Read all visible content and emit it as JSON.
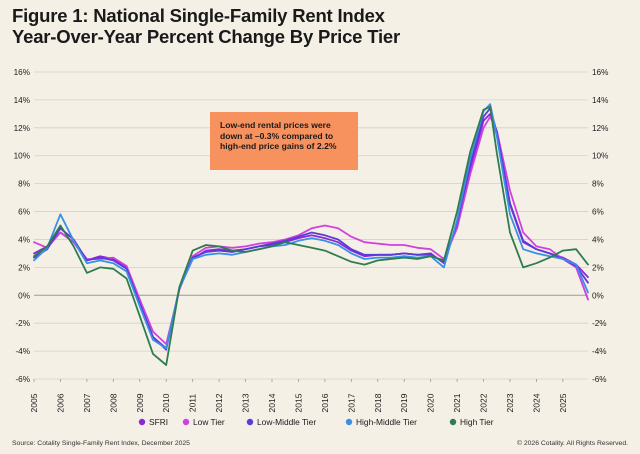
{
  "title_line1": "Figure 1: National Single-Family Rent Index",
  "title_line2": "Year-Over-Year Percent Change By Price Tier",
  "annotation": "Low-end rental prices were down at –0.3% compared to high-end price gains of 2.2%",
  "footer": {
    "source": "Source: Cotality Single-Family Rent Index, December 2025",
    "copyright": "© 2026 Cotality. All Rights Reserved."
  },
  "chart_data": {
    "type": "line",
    "ylim": [
      -6,
      16
    ],
    "xlim": [
      2005,
      2025.95
    ],
    "y_ticks": [
      -6,
      -4,
      -2,
      0,
      2,
      4,
      6,
      8,
      10,
      12,
      14,
      16
    ],
    "y_tick_labels": [
      "-6%",
      "-4%",
      "-2%",
      "0%",
      "2%",
      "4%",
      "6%",
      "8%",
      "10%",
      "12%",
      "14%",
      "16%"
    ],
    "x_ticks": [
      2005,
      2006,
      2007,
      2008,
      2009,
      2010,
      2011,
      2012,
      2013,
      2014,
      2015,
      2016,
      2017,
      2018,
      2019,
      2020,
      2021,
      2022,
      2023,
      2024,
      2025
    ],
    "x_tick_labels": [
      "2005",
      "2006",
      "2007",
      "2008",
      "2009",
      "2010",
      "2011",
      "2012",
      "2013",
      "2014",
      "2015",
      "2016",
      "2017",
      "2018",
      "2019",
      "2020",
      "2021",
      "2022",
      "2023",
      "2024",
      "2025"
    ],
    "grid": "horizontal",
    "legend_position": "bottom",
    "series": [
      {
        "name": "SFRI",
        "color": "#8a2ad6",
        "x": [
          2005,
          2005.5,
          2006,
          2006.5,
          2007,
          2007.5,
          2008,
          2008.5,
          2009,
          2009.5,
          2010,
          2010.5,
          2011,
          2011.5,
          2012,
          2012.5,
          2013,
          2013.5,
          2014,
          2014.5,
          2015,
          2015.5,
          2016,
          2016.5,
          2017,
          2017.5,
          2018,
          2018.5,
          2019,
          2019.5,
          2020,
          2020.5,
          2021,
          2021.5,
          2022,
          2022.25,
          2022.5,
          2023,
          2023.5,
          2024,
          2024.5,
          2025,
          2025.5,
          2025.95
        ],
        "y": [
          3.0,
          3.5,
          4.5,
          3.8,
          2.5,
          2.8,
          2.6,
          2.0,
          -0.5,
          -3.0,
          -3.8,
          0.5,
          2.6,
          3.2,
          3.3,
          3.2,
          3.3,
          3.5,
          3.6,
          3.8,
          4.1,
          4.3,
          4.1,
          3.8,
          3.2,
          2.8,
          2.9,
          2.9,
          3.0,
          2.9,
          2.9,
          2.4,
          5.0,
          9.0,
          12.5,
          13.0,
          11.5,
          6.5,
          3.8,
          3.3,
          3.0,
          2.7,
          2.2,
          1.3
        ]
      },
      {
        "name": "Low Tier",
        "color": "#d040e0",
        "x": [
          2005,
          2005.5,
          2006,
          2006.5,
          2007,
          2007.5,
          2008,
          2008.5,
          2009,
          2009.5,
          2010,
          2010.5,
          2011,
          2011.5,
          2012,
          2012.5,
          2013,
          2013.5,
          2014,
          2014.5,
          2015,
          2015.5,
          2016,
          2016.5,
          2017,
          2017.5,
          2018,
          2018.5,
          2019,
          2019.5,
          2020,
          2020.5,
          2021,
          2021.5,
          2022,
          2022.25,
          2022.5,
          2023,
          2023.5,
          2024,
          2024.5,
          2025,
          2025.5,
          2025.95
        ],
        "y": [
          3.8,
          3.4,
          4.5,
          3.8,
          2.6,
          2.6,
          2.7,
          2.1,
          -0.3,
          -2.6,
          -3.5,
          0.4,
          2.8,
          3.4,
          3.5,
          3.4,
          3.5,
          3.7,
          3.8,
          4.0,
          4.3,
          4.8,
          5.0,
          4.8,
          4.2,
          3.8,
          3.7,
          3.6,
          3.6,
          3.4,
          3.3,
          2.6,
          4.8,
          8.7,
          12.0,
          12.8,
          11.8,
          7.5,
          4.5,
          3.5,
          3.3,
          2.6,
          2.0,
          -0.3
        ]
      },
      {
        "name": "Low-Middle Tier",
        "color": "#5a3ad8",
        "x": [
          2005,
          2005.5,
          2006,
          2006.5,
          2007,
          2007.5,
          2008,
          2008.5,
          2009,
          2009.5,
          2010,
          2010.5,
          2011,
          2011.5,
          2012,
          2012.5,
          2013,
          2013.5,
          2014,
          2014.5,
          2015,
          2015.5,
          2016,
          2016.5,
          2017,
          2017.5,
          2018,
          2018.5,
          2019,
          2019.5,
          2020,
          2020.5,
          2021,
          2021.5,
          2022,
          2022.25,
          2022.5,
          2023,
          2023.5,
          2024,
          2024.5,
          2025,
          2025.5,
          2025.95
        ],
        "y": [
          2.7,
          3.3,
          4.8,
          4.0,
          2.5,
          2.7,
          2.5,
          1.9,
          -0.6,
          -3.0,
          -3.9,
          0.5,
          2.7,
          3.1,
          3.2,
          3.1,
          3.3,
          3.5,
          3.7,
          3.9,
          4.2,
          4.5,
          4.3,
          4.0,
          3.3,
          2.9,
          2.9,
          2.9,
          3.0,
          2.9,
          3.0,
          2.3,
          5.2,
          9.4,
          12.8,
          13.4,
          11.7,
          6.6,
          3.9,
          3.3,
          3.0,
          2.6,
          2.1,
          0.9
        ]
      },
      {
        "name": "High-Middle Tier",
        "color": "#3a8fe6",
        "x": [
          2005,
          2005.5,
          2006,
          2006.5,
          2007,
          2007.5,
          2008,
          2008.5,
          2009,
          2009.5,
          2010,
          2010.5,
          2011,
          2011.5,
          2012,
          2012.5,
          2013,
          2013.5,
          2014,
          2014.5,
          2015,
          2015.5,
          2016,
          2016.5,
          2017,
          2017.5,
          2018,
          2018.5,
          2019,
          2019.5,
          2020,
          2020.5,
          2021,
          2021.5,
          2022,
          2022.25,
          2022.5,
          2023,
          2023.5,
          2024,
          2024.5,
          2025,
          2025.5,
          2025.95
        ],
        "y": [
          2.5,
          3.4,
          5.8,
          3.9,
          2.3,
          2.5,
          2.3,
          1.7,
          -0.8,
          -3.2,
          -3.8,
          0.5,
          2.6,
          2.9,
          3.0,
          2.9,
          3.1,
          3.3,
          3.5,
          3.6,
          3.9,
          4.1,
          3.9,
          3.6,
          3.0,
          2.6,
          2.7,
          2.7,
          2.8,
          2.7,
          2.8,
          2.0,
          5.4,
          9.8,
          13.2,
          13.7,
          11.4,
          5.8,
          3.3,
          3.0,
          2.8,
          2.6,
          2.2,
          0.2
        ]
      },
      {
        "name": "High Tier",
        "color": "#2e7d4f",
        "x": [
          2005,
          2005.5,
          2006,
          2006.5,
          2007,
          2007.5,
          2008,
          2008.5,
          2009,
          2009.5,
          2010,
          2010.5,
          2011,
          2011.5,
          2012,
          2012.5,
          2013,
          2013.5,
          2014,
          2014.5,
          2015,
          2015.5,
          2016,
          2016.5,
          2017,
          2017.5,
          2018,
          2018.5,
          2019,
          2019.5,
          2020,
          2020.5,
          2021,
          2021.5,
          2022,
          2022.25,
          2022.5,
          2023,
          2023.5,
          2024,
          2024.5,
          2025,
          2025.5,
          2025.95
        ],
        "y": [
          2.8,
          3.5,
          5.0,
          3.5,
          1.6,
          2.0,
          1.9,
          1.2,
          -1.5,
          -4.2,
          -5.0,
          0.6,
          3.2,
          3.6,
          3.5,
          3.2,
          3.1,
          3.3,
          3.5,
          3.8,
          3.6,
          3.4,
          3.2,
          2.8,
          2.4,
          2.2,
          2.5,
          2.6,
          2.7,
          2.6,
          2.8,
          2.5,
          6.0,
          10.3,
          13.3,
          13.5,
          10.2,
          4.5,
          2.0,
          2.3,
          2.7,
          3.2,
          3.3,
          2.2
        ]
      }
    ]
  }
}
